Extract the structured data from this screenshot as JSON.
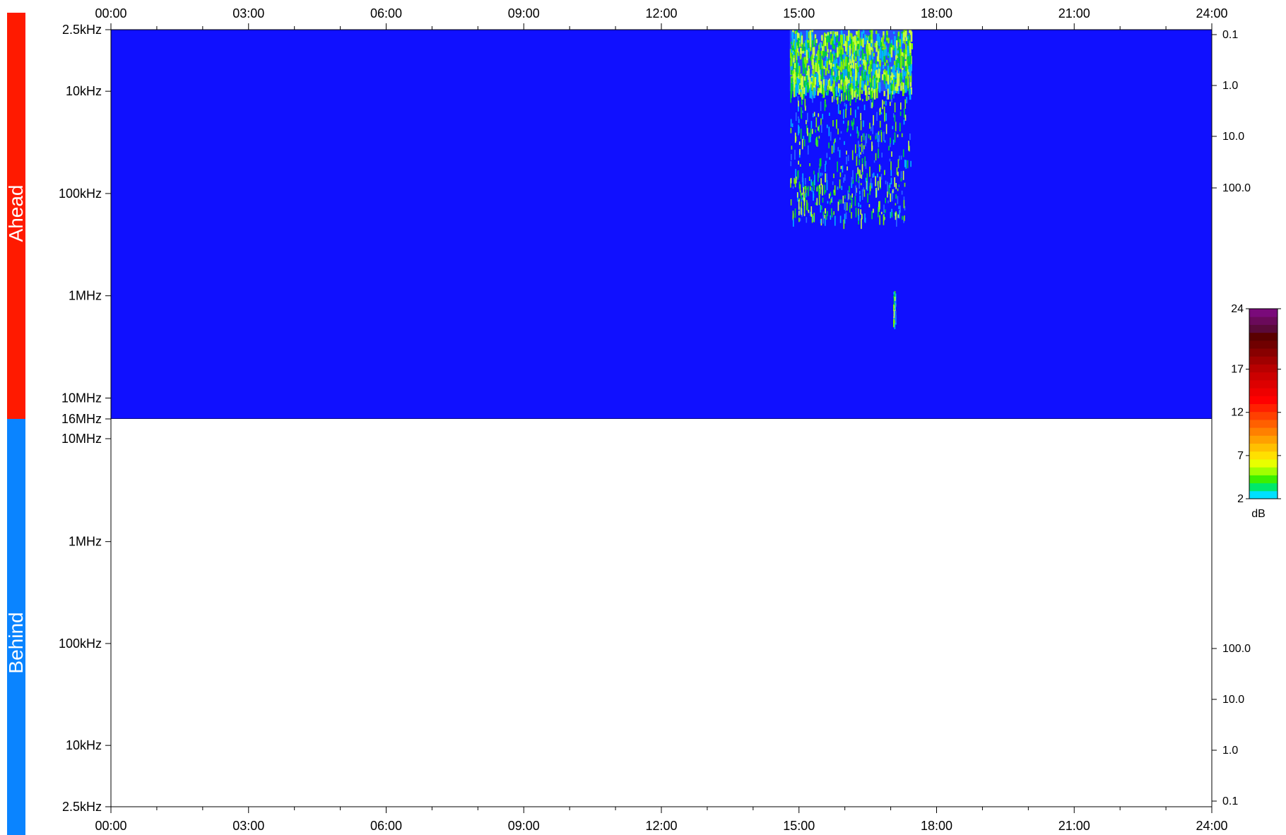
{
  "colors": {
    "ahead": "#ff1a00",
    "behind": "#0a84ff",
    "background": "#1010ff",
    "axis": "#000000"
  },
  "chart_data": {
    "type": "heatmap",
    "x_ticks": [
      "00:00",
      "03:00",
      "06:00",
      "09:00",
      "12:00",
      "15:00",
      "18:00",
      "21:00",
      "24:00"
    ],
    "x_range_hours": [
      0,
      24
    ],
    "panels": [
      {
        "label": "Ahead",
        "freq_ticks": [
          "2.5kHz",
          "10kHz",
          "100kHz",
          "1MHz",
          "10MHz",
          "16MHz"
        ],
        "freq_range_hz": [
          2500,
          16000000
        ],
        "right_ticks": [
          "0.1",
          "1.0",
          "10.0",
          "100.0"
        ],
        "has_data": true,
        "activity": [
          {
            "start_hour": 14.8,
            "end_hour": 17.45,
            "freq_low_hz": 2500,
            "freq_high_hz": 10000,
            "intensity_db": 3
          },
          {
            "start_hour": 14.8,
            "end_hour": 17.45,
            "freq_low_hz": 10000,
            "freq_high_hz": 60000,
            "intensity_db": 2
          },
          {
            "start_hour": 14.8,
            "end_hour": 17.3,
            "freq_low_hz": 60000,
            "freq_high_hz": 180000,
            "intensity_db": 2
          },
          {
            "start_hour": 17.05,
            "end_hour": 17.1,
            "freq_low_hz": 900000,
            "freq_high_hz": 1800000,
            "intensity_db": 2
          }
        ]
      },
      {
        "label": "Behind",
        "freq_ticks": [
          "10MHz",
          "1MHz",
          "100kHz",
          "10kHz",
          "2.5kHz"
        ],
        "freq_range_hz": [
          16000000,
          2500
        ],
        "right_ticks": [
          "100.0",
          "10.0",
          "1.0",
          "0.1"
        ],
        "has_data": false
      }
    ],
    "colorbar": {
      "unit": "dB",
      "ticks": [
        "24",
        "17",
        "12",
        "7",
        "2"
      ],
      "range_db": [
        2,
        24
      ]
    }
  }
}
